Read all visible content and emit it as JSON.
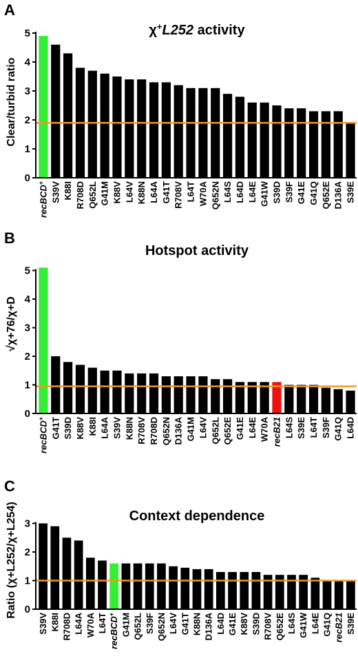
{
  "colors": {
    "bar": "#000000",
    "highlight_green": "#33ee33",
    "highlight_red": "#ee1111",
    "baseline": "#f39a1e"
  },
  "chart_data": [
    {
      "panel": "A",
      "type": "bar",
      "title_prefix": "χ",
      "title_sup": "+",
      "title_italic": "L252",
      "title_suffix": " activity",
      "ylabel": "Clear/turbid ratio",
      "ylim": [
        0,
        5
      ],
      "yticks": [
        0,
        1,
        2,
        3,
        4,
        5
      ],
      "reference_line": 1.9,
      "categories": [
        "recBCD+",
        "S39V",
        "K88I",
        "R708D",
        "Q652L",
        "G41M",
        "K88V",
        "L64V",
        "K88N",
        "L64A",
        "G41T",
        "R708V",
        "L64T",
        "W70A",
        "Q652N",
        "L64S",
        "L64D",
        "L64E",
        "G41W",
        "S39D",
        "S39F",
        "G41E",
        "G41Q",
        "Q652E",
        "D136A",
        "S39E"
      ],
      "values": [
        4.9,
        4.6,
        4.3,
        3.8,
        3.7,
        3.6,
        3.5,
        3.4,
        3.4,
        3.3,
        3.3,
        3.2,
        3.1,
        3.1,
        3.1,
        2.9,
        2.8,
        2.6,
        2.6,
        2.5,
        2.4,
        2.4,
        2.3,
        2.3,
        2.3,
        1.9
      ],
      "highlights": {
        "recBCD+": "green"
      }
    },
    {
      "panel": "B",
      "type": "bar",
      "title": "Hotspot activity",
      "ylabel": "√χ+76/χ+D",
      "ylim": [
        0,
        5
      ],
      "yticks": [
        0,
        1,
        2,
        3,
        4,
        5
      ],
      "reference_line": 0.95,
      "categories": [
        "recBCD+",
        "G41T",
        "S39D",
        "K88V",
        "K88I",
        "L64A",
        "S39V",
        "K88N",
        "R708V",
        "R708D",
        "Q652N",
        "D136A",
        "G41M",
        "L64V",
        "Q652L",
        "Q652E",
        "G41E",
        "L64E",
        "W70A",
        "recB21",
        "L64S",
        "S39E",
        "L64T",
        "S39F",
        "G41Q",
        "L64D"
      ],
      "values": [
        5.1,
        2.0,
        1.8,
        1.7,
        1.6,
        1.5,
        1.5,
        1.4,
        1.4,
        1.4,
        1.3,
        1.3,
        1.3,
        1.3,
        1.2,
        1.2,
        1.1,
        1.1,
        1.1,
        1.1,
        1.0,
        1.0,
        1.0,
        0.9,
        0.85,
        0.8
      ],
      "highlights": {
        "recBCD+": "green",
        "recB21": "red"
      }
    },
    {
      "panel": "C",
      "type": "bar",
      "title": "Context dependence",
      "ylabel": "Ratio (χ+L252/χ+L254)",
      "ylim": [
        0,
        3
      ],
      "yticks": [
        0,
        1,
        2,
        3
      ],
      "reference_line": 1.0,
      "categories": [
        "S39V",
        "K88I",
        "R708D",
        "L64A",
        "W70A",
        "L64T",
        "recBCD+",
        "G41M",
        "Q652L",
        "S39F",
        "Q652N",
        "L64V",
        "G41T",
        "K88N",
        "D136A",
        "L64D",
        "G41E",
        "K88V",
        "S39D",
        "R708V",
        "Q652E",
        "L64S",
        "G41W",
        "L64E",
        "G41Q",
        "recB21",
        "S39E"
      ],
      "values": [
        3.0,
        2.9,
        2.5,
        2.4,
        1.8,
        1.7,
        1.6,
        1.6,
        1.6,
        1.6,
        1.6,
        1.5,
        1.45,
        1.4,
        1.4,
        1.3,
        1.3,
        1.3,
        1.3,
        1.2,
        1.2,
        1.2,
        1.2,
        1.1,
        1.02,
        1.0,
        1.0
      ],
      "highlights": {
        "recBCD+": "green"
      }
    }
  ]
}
